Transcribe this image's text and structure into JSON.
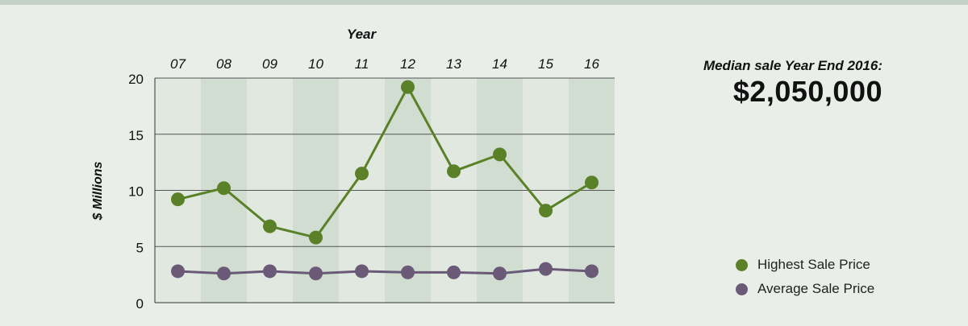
{
  "callout": {
    "label": "Median sale Year End 2016:",
    "value": "$2,050,000"
  },
  "chart_data": {
    "type": "line",
    "title": "",
    "xlabel": "Year",
    "ylabel": "$ Millions",
    "categories": [
      "07",
      "08",
      "09",
      "10",
      "11",
      "12",
      "13",
      "14",
      "15",
      "16"
    ],
    "ylim": [
      0,
      20
    ],
    "yticks": [
      0,
      5,
      10,
      15,
      20
    ],
    "x_axis_position": "top",
    "grid": "horizontal",
    "alternating_column_shading": true,
    "legend_position": "right",
    "series": [
      {
        "name": "Highest Sale Price",
        "color": "#5b8128",
        "values": [
          9.2,
          10.2,
          6.8,
          5.8,
          11.5,
          19.2,
          11.7,
          13.2,
          8.2,
          10.7
        ]
      },
      {
        "name": "Average Sale Price",
        "color": "#6a5a78",
        "values": [
          2.8,
          2.6,
          2.8,
          2.6,
          2.8,
          2.7,
          2.7,
          2.6,
          3.0,
          2.8
        ]
      }
    ],
    "colors": {
      "background": "#e9eee9",
      "band_light": "#e0e8e0",
      "band_dark": "#d0ddd0",
      "gridline": "#555555"
    }
  }
}
